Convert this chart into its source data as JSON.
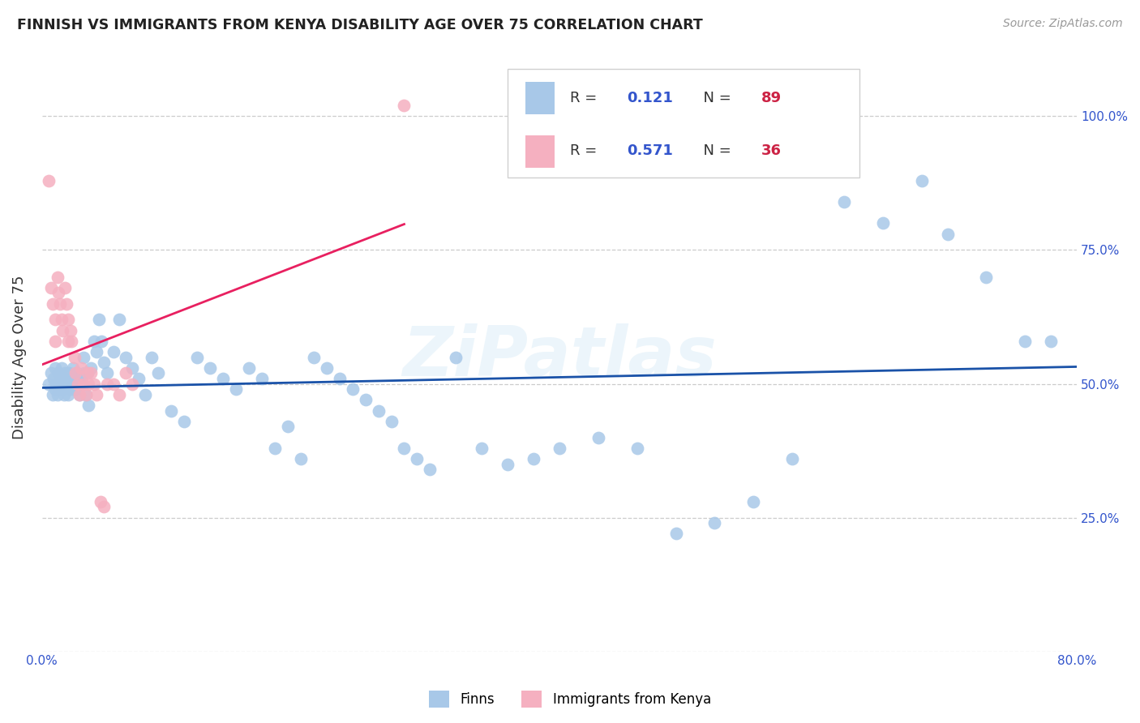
{
  "title": "FINNISH VS IMMIGRANTS FROM KENYA DISABILITY AGE OVER 75 CORRELATION CHART",
  "source": "Source: ZipAtlas.com",
  "ylabel": "Disability Age Over 75",
  "xlim": [
    0.0,
    0.8
  ],
  "ylim": [
    0.0,
    1.1
  ],
  "xticks": [
    0.0,
    0.8
  ],
  "xtick_labels": [
    "0.0%",
    "80.0%"
  ],
  "yticks_right": [
    0.25,
    0.5,
    0.75,
    1.0
  ],
  "ytick_right_labels": [
    "25.0%",
    "50.0%",
    "75.0%",
    "100.0%"
  ],
  "finns_R": 0.121,
  "finns_N": 89,
  "kenya_R": 0.571,
  "kenya_N": 36,
  "finns_color": "#a8c8e8",
  "kenya_color": "#f5b0c0",
  "finns_line_color": "#1a52a8",
  "kenya_line_color": "#e82060",
  "watermark": "ZiPatlas",
  "background_color": "#ffffff",
  "label_color": "#3355cc",
  "title_color": "#222222",
  "finns_x": [
    0.005,
    0.007,
    0.008,
    0.009,
    0.01,
    0.01,
    0.011,
    0.012,
    0.013,
    0.014,
    0.015,
    0.015,
    0.016,
    0.017,
    0.018,
    0.019,
    0.02,
    0.02,
    0.021,
    0.022,
    0.023,
    0.024,
    0.025,
    0.025,
    0.026,
    0.027,
    0.028,
    0.029,
    0.03,
    0.03,
    0.032,
    0.033,
    0.034,
    0.035,
    0.036,
    0.038,
    0.04,
    0.042,
    0.044,
    0.046,
    0.048,
    0.05,
    0.055,
    0.06,
    0.065,
    0.07,
    0.075,
    0.08,
    0.085,
    0.09,
    0.1,
    0.11,
    0.12,
    0.13,
    0.14,
    0.15,
    0.16,
    0.17,
    0.18,
    0.19,
    0.2,
    0.21,
    0.22,
    0.23,
    0.24,
    0.25,
    0.26,
    0.27,
    0.28,
    0.29,
    0.3,
    0.32,
    0.34,
    0.36,
    0.38,
    0.4,
    0.43,
    0.46,
    0.49,
    0.52,
    0.55,
    0.58,
    0.62,
    0.65,
    0.68,
    0.7,
    0.73,
    0.76,
    0.78
  ],
  "finns_y": [
    0.5,
    0.52,
    0.48,
    0.51,
    0.49,
    0.53,
    0.5,
    0.48,
    0.52,
    0.51,
    0.49,
    0.53,
    0.5,
    0.48,
    0.52,
    0.51,
    0.5,
    0.48,
    0.52,
    0.5,
    0.49,
    0.53,
    0.51,
    0.5,
    0.49,
    0.52,
    0.5,
    0.48,
    0.51,
    0.5,
    0.55,
    0.52,
    0.48,
    0.52,
    0.46,
    0.53,
    0.58,
    0.56,
    0.62,
    0.58,
    0.54,
    0.52,
    0.56,
    0.62,
    0.55,
    0.53,
    0.51,
    0.48,
    0.55,
    0.52,
    0.45,
    0.43,
    0.55,
    0.53,
    0.51,
    0.49,
    0.53,
    0.51,
    0.38,
    0.42,
    0.36,
    0.55,
    0.53,
    0.51,
    0.49,
    0.47,
    0.45,
    0.43,
    0.38,
    0.36,
    0.34,
    0.55,
    0.38,
    0.35,
    0.36,
    0.38,
    0.4,
    0.38,
    0.22,
    0.24,
    0.28,
    0.36,
    0.84,
    0.8,
    0.88,
    0.78,
    0.7,
    0.58,
    0.58
  ],
  "kenya_x": [
    0.005,
    0.007,
    0.008,
    0.01,
    0.01,
    0.012,
    0.013,
    0.014,
    0.015,
    0.016,
    0.018,
    0.019,
    0.02,
    0.02,
    0.022,
    0.023,
    0.025,
    0.026,
    0.028,
    0.029,
    0.03,
    0.032,
    0.034,
    0.035,
    0.036,
    0.038,
    0.04,
    0.042,
    0.045,
    0.048,
    0.05,
    0.055,
    0.06,
    0.065,
    0.07,
    0.28
  ],
  "kenya_y": [
    0.88,
    0.68,
    0.65,
    0.62,
    0.58,
    0.7,
    0.67,
    0.65,
    0.62,
    0.6,
    0.68,
    0.65,
    0.62,
    0.58,
    0.6,
    0.58,
    0.55,
    0.52,
    0.5,
    0.48,
    0.53,
    0.5,
    0.48,
    0.52,
    0.5,
    0.52,
    0.5,
    0.48,
    0.28,
    0.27,
    0.5,
    0.5,
    0.48,
    0.52,
    0.5,
    1.02
  ]
}
